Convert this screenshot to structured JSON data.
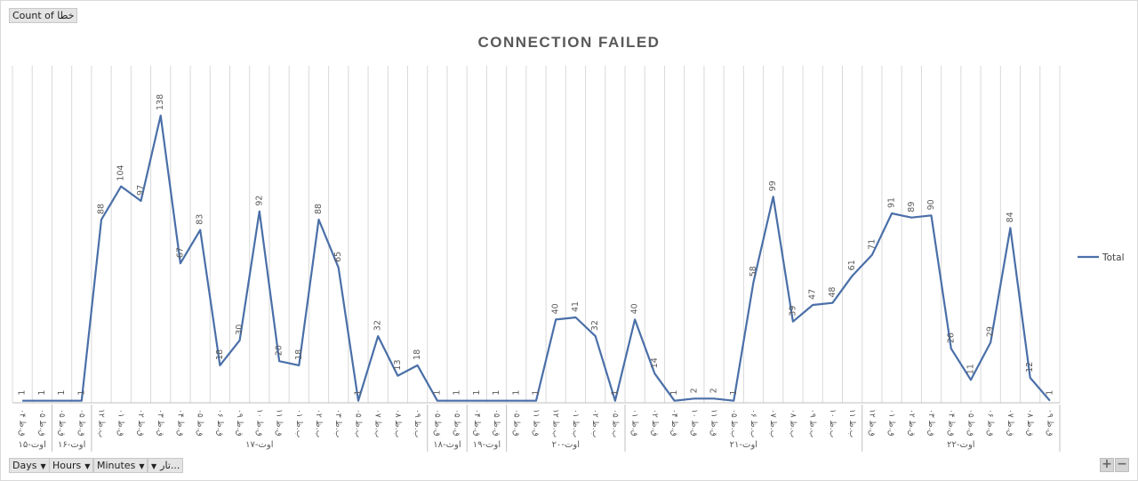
{
  "header": {
    "value_field": "Count of خطا"
  },
  "footer": {
    "fields": [
      {
        "label": "Days"
      },
      {
        "label": "Hours"
      },
      {
        "label": "Minutes"
      },
      {
        "label": "تار..."
      }
    ]
  },
  "chart_data": {
    "type": "line",
    "title": "CONNECTION FAILED",
    "legend_position": "right",
    "grid": "vertical",
    "series": [
      {
        "name": "Total",
        "color": "#4a6fa8",
        "values": [
          1,
          1,
          1,
          1,
          88,
          104,
          97,
          138,
          67,
          83,
          18,
          30,
          92,
          20,
          18,
          88,
          65,
          1,
          32,
          13,
          18,
          1,
          1,
          1,
          1,
          1,
          1,
          40,
          41,
          32,
          1,
          40,
          14,
          1,
          2,
          2,
          1,
          58,
          99,
          39,
          47,
          48,
          61,
          71,
          91,
          89,
          90,
          26,
          11,
          29,
          84,
          12,
          1
        ]
      }
    ],
    "x_hour_labels": [
      "۰۴ ق.ظ",
      "۰۵ ق.ظ",
      "۰۵ ق.ظ",
      "۰۵ ق.ظ",
      "۱۲ ب.ظ",
      "۰۱ ق.ظ",
      "۰۲ ق.ظ",
      "۰۳ ق.ظ",
      "۰۴ ق.ظ",
      "۰۵ ق.ظ",
      "۰۶ ق.ظ",
      "۰۹ ق.ظ",
      "۱۰ ق.ظ",
      "۱۱ ق.ظ",
      "۰۱ ب.ظ",
      "۰۲ ب.ظ",
      "۰۳ ب.ظ",
      "۰۵ ب.ظ",
      "۰۷ ب.ظ",
      "۰۸ ب.ظ",
      "۰۹ ب.ظ",
      "۰۵ ق.ظ",
      "۰۵ ق.ظ",
      "۰۴ ق.ظ",
      "۰۵ ق.ظ",
      "۰۵ ق.ظ",
      "۱۱ ق.ظ",
      "۱۲ ب.ظ",
      "۰۱ ب.ظ",
      "۰۲ ب.ظ",
      "۰۵ ب.ظ",
      "۰۱ ق.ظ",
      "۰۲ ق.ظ",
      "۰۴ ق.ظ",
      "۱۰ ق.ظ",
      "۱۱ ق.ظ",
      "۰۵ ب.ظ",
      "۰۶ ب.ظ",
      "۰۷ ب.ظ",
      "۰۸ ب.ظ",
      "۰۹ ب.ظ",
      "۱۰ ب.ظ",
      "۱۱ ب.ظ",
      "۱۲ ق.ظ",
      "۰۱ ق.ظ",
      "۰۲ ق.ظ",
      "۰۳ ق.ظ",
      "۰۴ ق.ظ",
      "۰۵ ق.ظ",
      "۰۶ ق.ظ",
      "۰۷ ق.ظ",
      "۰۸ ق.ظ",
      "۰۹ ق.ظ"
    ],
    "x_day_groups": [
      {
        "label": "۱۵-اوت",
        "count": 2
      },
      {
        "label": "۱۶-اوت",
        "count": 2
      },
      {
        "label": "۱۷-اوت",
        "count": 17
      },
      {
        "label": "۱۸-اوت",
        "count": 2
      },
      {
        "label": "۱۹-اوت",
        "count": 2
      },
      {
        "label": "۲۰-اوت",
        "count": 6
      },
      {
        "label": "۲۱-اوت",
        "count": 12
      },
      {
        "label": "۲۲-اوت",
        "count": 10
      }
    ]
  }
}
